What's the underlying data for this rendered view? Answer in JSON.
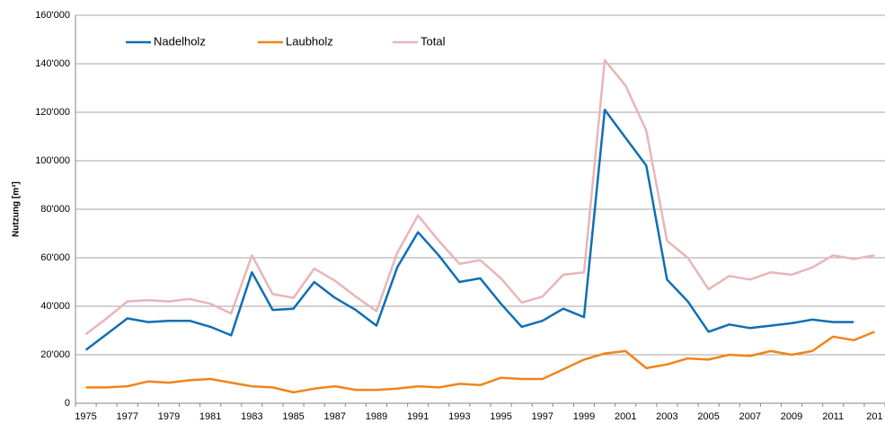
{
  "chart_data": {
    "type": "line",
    "ylabel": "Nutzung [m³]",
    "categories": [
      "1975",
      null,
      "1977",
      null,
      "1979",
      null,
      "1981",
      null,
      "1983",
      null,
      "1985",
      null,
      "1987",
      null,
      "1989",
      null,
      "1991",
      null,
      "1993",
      null,
      "1995",
      null,
      "1997",
      null,
      "1999",
      null,
      "2001",
      null,
      "2003",
      null,
      "2005",
      null,
      "2007",
      null,
      "2009",
      null,
      "2011",
      null,
      "201"
    ],
    "series": [
      {
        "name": "Nadelholz",
        "color": "#0f6fb4",
        "values": [
          22000,
          28500,
          35000,
          33500,
          34000,
          34000,
          31500,
          28000,
          54000,
          38500,
          39000,
          50000,
          43500,
          38500,
          32000,
          56000,
          70500,
          61000,
          50000,
          51500,
          41000,
          31500,
          34000,
          39000,
          35500,
          121000,
          109500,
          98000,
          51000,
          42000,
          29500,
          32500,
          31000,
          32000,
          33000,
          34500,
          33500,
          33500,
          null
        ]
      },
      {
        "name": "Laubholz",
        "color": "#f0841a",
        "values": [
          6500,
          6500,
          7000,
          9000,
          8500,
          9500,
          10000,
          8500,
          7000,
          6500,
          4500,
          6000,
          7000,
          5500,
          5500,
          6000,
          7000,
          6500,
          8000,
          7500,
          10500,
          10000,
          10000,
          14000,
          18000,
          20500,
          21500,
          14500,
          16000,
          18500,
          18000,
          20000,
          19500,
          21500,
          20000,
          21500,
          27500,
          26000,
          29500
        ]
      },
      {
        "name": "Total",
        "color": "#e9b5b8",
        "values": [
          28500,
          35000,
          42000,
          42500,
          42000,
          43000,
          41000,
          37000,
          61000,
          45000,
          43500,
          55500,
          50500,
          44000,
          38000,
          62000,
          77500,
          67000,
          57500,
          59000,
          51500,
          41500,
          44000,
          53000,
          54000,
          141500,
          131000,
          112500,
          67000,
          60000,
          47000,
          52500,
          51000,
          54000,
          53000,
          56000,
          61000,
          59500,
          61000
        ]
      }
    ],
    "ylim": [
      0,
      160000
    ],
    "yticks": [
      0,
      {
        "value": 20000,
        "label": "20'000"
      },
      {
        "value": 40000,
        "label": "40'000"
      },
      {
        "value": 60000,
        "label": "60'000"
      },
      {
        "value": 80000,
        "label": "80'000"
      },
      {
        "value": 100000,
        "label": "100'000"
      },
      {
        "value": 120000,
        "label": "120'000"
      },
      {
        "value": 140000,
        "label": "140'000"
      },
      {
        "value": 160000,
        "label": "160'000"
      }
    ],
    "grid": true
  }
}
